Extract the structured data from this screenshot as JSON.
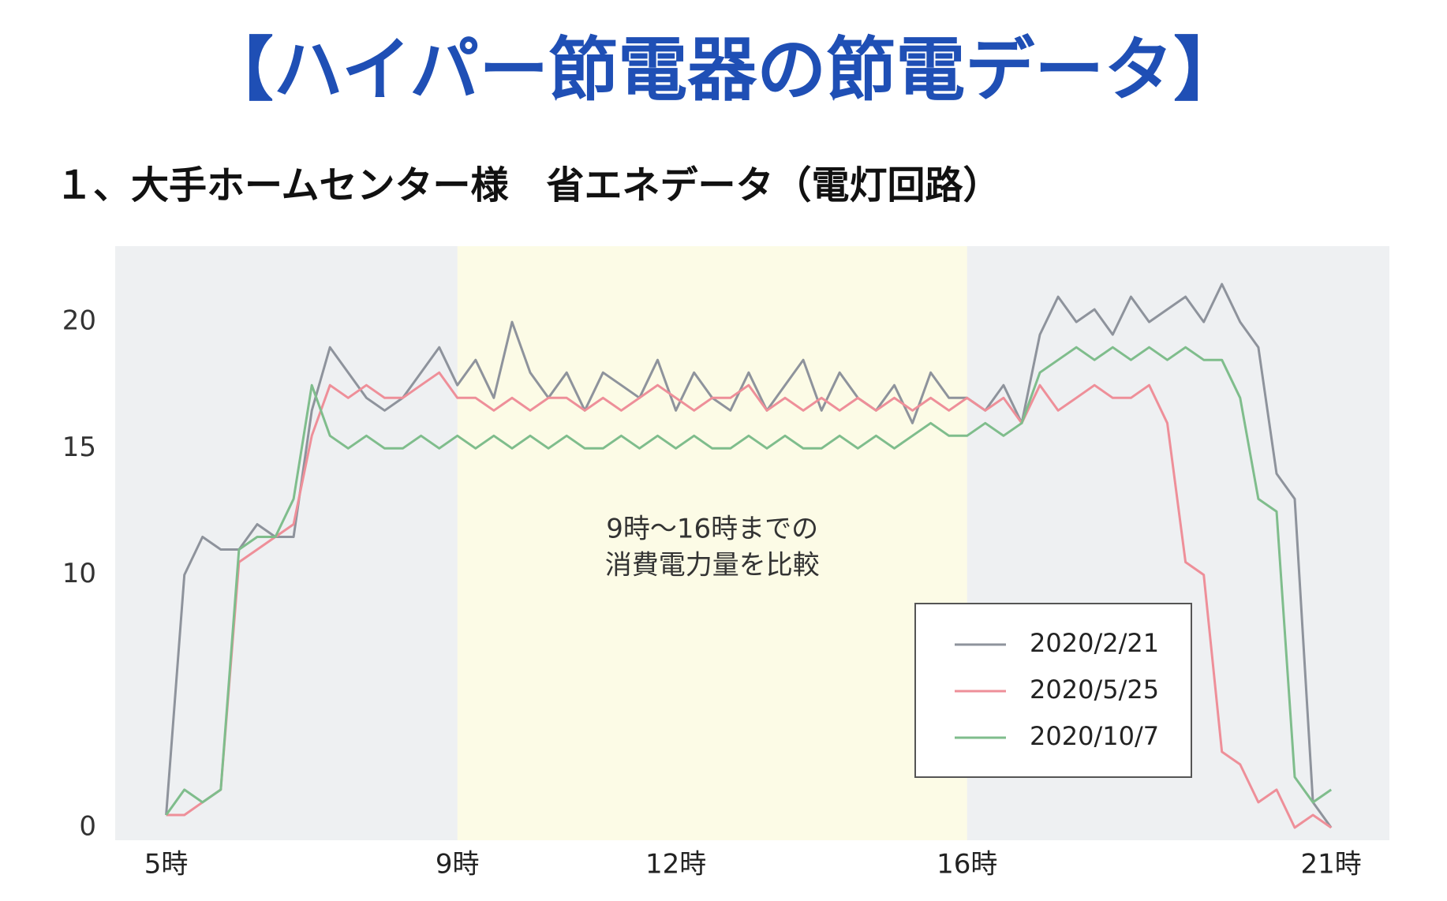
{
  "chart_data": {
    "type": "line",
    "title": "【ハイパー節電器の節電データ】",
    "subtitle": "１、大手ホームセンター様　省エネデータ（電灯回路）",
    "annotation": [
      "9時〜16時までの",
      "消費電力量を比較"
    ],
    "highlight_range": [
      9,
      16
    ],
    "x": [
      5,
      5.25,
      5.5,
      5.75,
      6,
      6.25,
      6.5,
      6.75,
      7,
      7.25,
      7.5,
      7.75,
      8,
      8.25,
      8.5,
      8.75,
      9,
      9.25,
      9.5,
      9.75,
      10,
      10.25,
      10.5,
      10.75,
      11,
      11.25,
      11.5,
      11.75,
      12,
      12.25,
      12.5,
      12.75,
      13,
      13.25,
      13.5,
      13.75,
      14,
      14.25,
      14.5,
      14.75,
      15,
      15.25,
      15.5,
      15.75,
      16,
      16.25,
      16.5,
      16.75,
      17,
      17.25,
      17.5,
      17.75,
      18,
      18.25,
      18.5,
      18.75,
      19,
      19.25,
      19.5,
      19.75,
      20,
      20.25,
      20.5,
      20.75,
      21
    ],
    "series": [
      {
        "name": "2020/2/21",
        "color": "#8e939c",
        "values": [
          0.5,
          10,
          11.5,
          11,
          11,
          12,
          11.5,
          11.5,
          16.5,
          19,
          18,
          17,
          16.5,
          17,
          18,
          19,
          17.5,
          18.5,
          17,
          20,
          18,
          17,
          18,
          16.5,
          18,
          17.5,
          17,
          18.5,
          16.5,
          18,
          17,
          16.5,
          18,
          16.5,
          17.5,
          18.5,
          16.5,
          18,
          17,
          16.5,
          17.5,
          16,
          18,
          17,
          17,
          16.5,
          17.5,
          16,
          19.5,
          21,
          20,
          20.5,
          19.5,
          21,
          20,
          20.5,
          21,
          20,
          21.5,
          20,
          19,
          14,
          13,
          1,
          0
        ]
      },
      {
        "name": "2020/5/25",
        "color": "#ee8f99",
        "values": [
          0.5,
          0.5,
          1,
          1.5,
          10.5,
          11,
          11.5,
          12,
          15.5,
          17.5,
          17,
          17.5,
          17,
          17,
          17.5,
          18,
          17,
          17,
          16.5,
          17,
          16.5,
          17,
          17,
          16.5,
          17,
          16.5,
          17,
          17.5,
          17,
          16.5,
          17,
          17,
          17.5,
          16.5,
          17,
          16.5,
          17,
          16.5,
          17,
          16.5,
          17,
          16.5,
          17,
          16.5,
          17,
          16.5,
          17,
          16,
          17.5,
          16.5,
          17,
          17.5,
          17,
          17,
          17.5,
          16,
          10.5,
          10,
          3,
          2.5,
          1,
          1.5,
          0,
          0.5,
          0
        ]
      },
      {
        "name": "2020/10/7",
        "color": "#7fbd8c",
        "values": [
          0.5,
          1.5,
          1,
          1.5,
          11,
          11.5,
          11.5,
          13,
          17.5,
          15.5,
          15,
          15.5,
          15,
          15,
          15.5,
          15,
          15.5,
          15,
          15.5,
          15,
          15.5,
          15,
          15.5,
          15,
          15,
          15.5,
          15,
          15.5,
          15,
          15.5,
          15,
          15,
          15.5,
          15,
          15.5,
          15,
          15,
          15.5,
          15,
          15.5,
          15,
          15.5,
          16,
          15.5,
          15.5,
          16,
          15.5,
          16,
          18,
          18.5,
          19,
          18.5,
          19,
          18.5,
          19,
          18.5,
          19,
          18.5,
          18.5,
          17,
          13,
          12.5,
          2,
          1,
          1.5
        ]
      }
    ],
    "xlim": [
      4.3,
      21.8
    ],
    "xticks": [
      {
        "value": 5,
        "label": "5時"
      },
      {
        "value": 9,
        "label": "9時"
      },
      {
        "value": 12,
        "label": "12時"
      },
      {
        "value": 16,
        "label": "16時"
      },
      {
        "value": 21,
        "label": "21時"
      }
    ],
    "ylim": [
      -0.5,
      23
    ],
    "yticks": [
      0,
      10,
      15,
      20
    ],
    "grid": false,
    "legend": "lower right"
  }
}
